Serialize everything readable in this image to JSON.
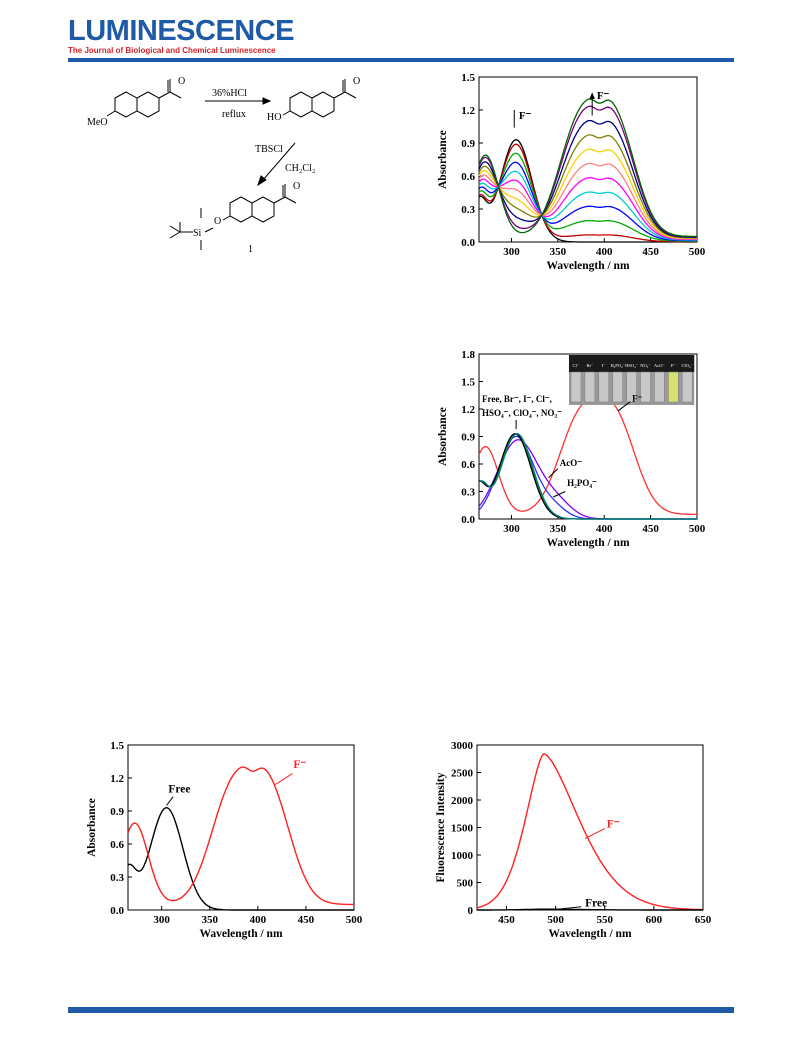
{
  "header": {
    "journal_title": "LUMINESCENCE",
    "journal_subtitle": "The Journal of Biological and Chemical Luminescence",
    "rule_color": "#1e5aa8",
    "title_color": "#1e5aa8",
    "subtitle_color": "#d2232a"
  },
  "scheme": {
    "reagent1_top": "36%HCl",
    "reagent1_bottom": "reflux",
    "reagent2_top": "TBSCl",
    "reagent2_bottom": "CH₂Cl₂",
    "start_label": "MeO",
    "intermediate_label": "HO",
    "product_si": "Si",
    "product_o": "O",
    "compound_number": "1"
  },
  "chart_data": [
    {
      "id": "titration",
      "type": "line",
      "xlabel": "Wavelength / nm",
      "ylabel": "Absorbance",
      "xlim": [
        265,
        500
      ],
      "ylim": [
        0,
        1.5
      ],
      "xticks": [
        "300",
        "350",
        "400",
        "450",
        "500"
      ],
      "yticks": [
        "0.0",
        "0.3",
        "0.6",
        "0.9",
        "1.2",
        "1.5"
      ],
      "annotations": [
        "F⁻",
        "F⁻"
      ],
      "fractions": [
        0,
        0.05,
        0.15,
        0.25,
        0.35,
        0.45,
        0.55,
        0.65,
        0.75,
        0.85,
        0.95,
        1.0
      ],
      "series_colors": [
        "#000000",
        "#c00000",
        "#00aa00",
        "#0000ff",
        "#00cccc",
        "#ff00ff",
        "#ff8080",
        "#ffd000",
        "#808000",
        "#000080",
        "#800080",
        "#006600"
      ]
    },
    {
      "id": "selectivity",
      "type": "line",
      "xlabel": "Wavelength / nm",
      "ylabel": "Absorbance",
      "xlim": [
        265,
        500
      ],
      "ylim": [
        0,
        1.8
      ],
      "xticks": [
        "300",
        "350",
        "400",
        "450",
        "500"
      ],
      "yticks": [
        "0.0",
        "0.3",
        "0.6",
        "0.9",
        "1.2",
        "1.5",
        "1.8"
      ],
      "labels": {
        "group_line1": "Free, Br⁻, I⁻, Cl⁻,",
        "group_line2": "HSO₄⁻, ClO₄⁻, NO₃⁻",
        "fluoride": "F⁻",
        "acetate": "AcO⁻",
        "phosphate": "H₂PO₄⁻"
      },
      "photo_labels": [
        "Cl⁻",
        "Br⁻",
        "I⁻",
        "H₂PO₄⁻",
        "HSO₄⁻",
        "NO₃⁻",
        "AcO⁻",
        "F⁻",
        "ClO₄⁻"
      ],
      "series": [
        {
          "name": "F⁻",
          "color": "#ff3030",
          "kind": "F"
        },
        {
          "name": "AcO⁻",
          "color": "#8000ff",
          "kind": "AcO"
        },
        {
          "name": "H₂PO₄⁻",
          "color": "#3030ff",
          "kind": "H2PO4"
        },
        {
          "name": "HSO₄⁻",
          "color": "#00aa00",
          "kind": "free",
          "shift": 0
        },
        {
          "name": "Free",
          "color": "#000000",
          "kind": "free",
          "shift": -1
        },
        {
          "name": "Br⁻",
          "color": "#008080",
          "kind": "free",
          "shift": 1
        }
      ]
    },
    {
      "id": "abs_compare",
      "type": "line",
      "xlabel": "Wavelength / nm",
      "ylabel": "Absorbance",
      "xlim": [
        265,
        500
      ],
      "ylim": [
        0,
        1.5
      ],
      "xticks": [
        "300",
        "350",
        "400",
        "450",
        "500"
      ],
      "yticks": [
        "0.0",
        "0.3",
        "0.6",
        "0.9",
        "1.2",
        "1.5"
      ],
      "series": [
        {
          "name": "Free",
          "color": "#000000",
          "kind": "free"
        },
        {
          "name": "F⁻",
          "color": "#ff2020",
          "kind": "F"
        }
      ]
    },
    {
      "id": "fluorescence",
      "type": "line",
      "xlabel": "Wavelength / nm",
      "ylabel": "Fluorescence Intensity",
      "xlim": [
        420,
        650
      ],
      "ylim": [
        0,
        3000
      ],
      "xticks": [
        "450",
        "500",
        "550",
        "600",
        "650"
      ],
      "yticks": [
        "0",
        "500",
        "1000",
        "1500",
        "2000",
        "2500",
        "3000"
      ],
      "series": [
        {
          "name": "F⁻",
          "color": "#ff2020",
          "peak_x": 488,
          "peak_y": 2840
        },
        {
          "name": "Free",
          "color": "#000000",
          "peak_x": 488,
          "peak_y": 15
        }
      ]
    }
  ]
}
